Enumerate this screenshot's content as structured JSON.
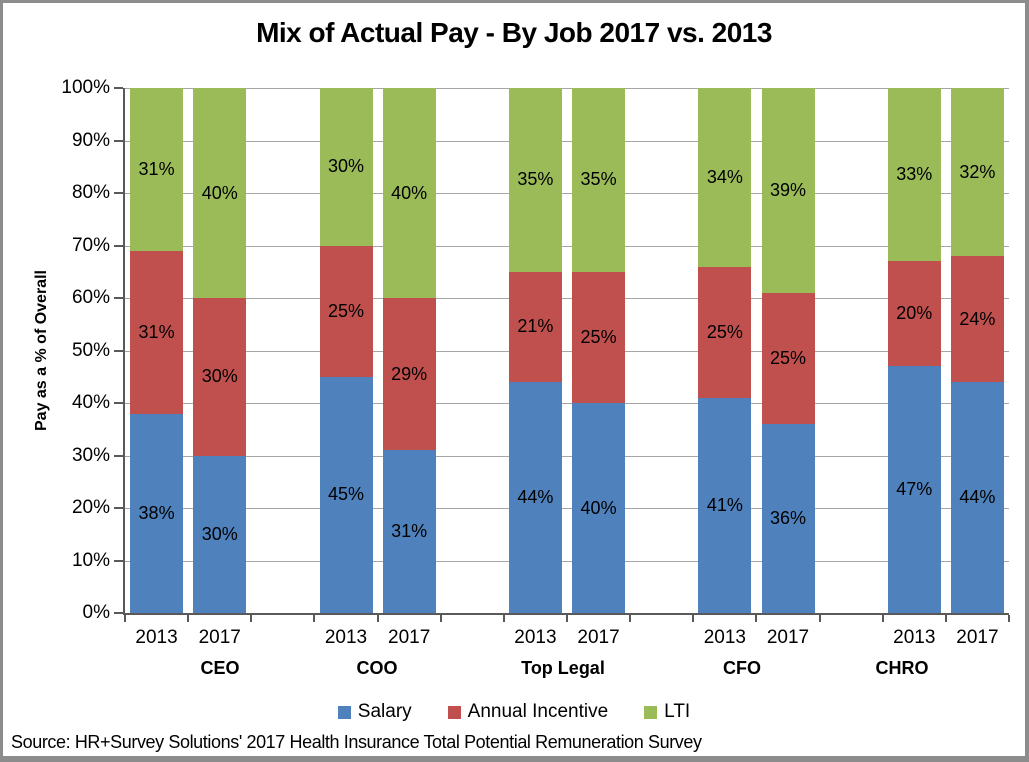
{
  "source_note": "Source: HR+Survey Solutions' 2017 Health Insurance Total Potential Remuneration Survey",
  "chart_data": {
    "type": "bar",
    "stacked": true,
    "title": "Mix of Actual Pay - By Job 2017 vs. 2013",
    "ylabel": "Pay as a % of Overall",
    "xlabel": "",
    "ylim": [
      0,
      100
    ],
    "ytick_step": 10,
    "ytick_labels": [
      "0%",
      "10%",
      "20%",
      "30%",
      "40%",
      "50%",
      "60%",
      "70%",
      "80%",
      "90%",
      "100%"
    ],
    "grid": true,
    "gridline_color": "#A6A6A6",
    "axis_color": "#595959",
    "legend_position": "bottom",
    "series_order": [
      "Salary",
      "Annual Incentive",
      "LTI"
    ],
    "legend": [
      {
        "label": "Salary",
        "color": "#4F81BD"
      },
      {
        "label": "Annual Incentive",
        "color": "#C0504D"
      },
      {
        "label": "LTI",
        "color": "#9BBB59"
      }
    ],
    "data_label_suffix": "%",
    "groups": [
      {
        "label": "CEO",
        "bars": [
          {
            "category": "2013",
            "values": [
              38,
              31,
              31
            ]
          },
          {
            "category": "2017",
            "values": [
              30,
              30,
              40
            ]
          }
        ]
      },
      {
        "label": "COO",
        "bars": [
          {
            "category": "2013",
            "values": [
              45,
              25,
              30
            ]
          },
          {
            "category": "2017",
            "values": [
              31,
              29,
              40
            ]
          }
        ]
      },
      {
        "label": "Top Legal",
        "bars": [
          {
            "category": "2013",
            "values": [
              44,
              21,
              35
            ]
          },
          {
            "category": "2017",
            "values": [
              40,
              25,
              35
            ]
          }
        ]
      },
      {
        "label": "CFO",
        "bars": [
          {
            "category": "2013",
            "values": [
              41,
              25,
              34
            ]
          },
          {
            "category": "2017",
            "values": [
              36,
              25,
              39
            ]
          }
        ]
      },
      {
        "label": "CHRO",
        "bars": [
          {
            "category": "2013",
            "values": [
              47,
              20,
              33
            ]
          },
          {
            "category": "2017",
            "values": [
              44,
              24,
              32
            ]
          }
        ]
      }
    ]
  }
}
